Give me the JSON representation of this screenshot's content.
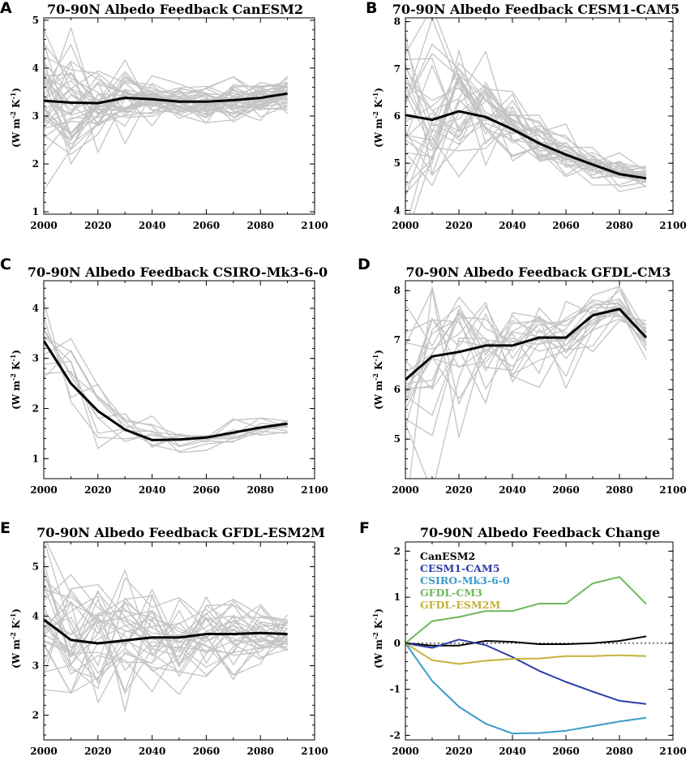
{
  "chart_data": [
    {
      "id": "A",
      "type": "line",
      "title": "70-90N Albedo Feedback CanESM2",
      "ylabel": "(W m⁻² K⁻¹)",
      "xlim": [
        2000,
        2100
      ],
      "ylim": [
        0.95,
        5.05
      ],
      "xticks": [
        2000,
        2020,
        2040,
        2060,
        2080,
        2100
      ],
      "yticks": [
        1,
        2,
        3,
        4,
        5
      ],
      "x": [
        2000,
        2010,
        2020,
        2030,
        2040,
        2050,
        2060,
        2070,
        2080,
        2090
      ],
      "member_seed": 11,
      "member_count": 40,
      "member_spread": [
        0.75,
        0.6,
        0.45,
        0.35,
        0.25,
        0.22,
        0.22,
        0.2,
        0.2,
        0.2
      ],
      "mean": [
        3.32,
        3.28,
        3.27,
        3.38,
        3.35,
        3.3,
        3.3,
        3.33,
        3.38,
        3.47
      ]
    },
    {
      "id": "B",
      "type": "line",
      "title": "70-90N Albedo Feedback CESM1-CAM5",
      "ylabel": "(W m⁻² K⁻¹)",
      "xlim": [
        2000,
        2100
      ],
      "ylim": [
        3.92,
        8.08
      ],
      "xticks": [
        2000,
        2020,
        2040,
        2060,
        2080,
        2100
      ],
      "yticks": [
        4,
        5,
        6,
        7,
        8
      ],
      "x": [
        2000,
        2010,
        2020,
        2030,
        2040,
        2050,
        2060,
        2070,
        2080,
        2090
      ],
      "member_seed": 23,
      "member_count": 30,
      "member_spread": [
        1.0,
        0.95,
        0.75,
        0.55,
        0.35,
        0.3,
        0.25,
        0.18,
        0.15,
        0.12
      ],
      "mean": [
        6.02,
        5.92,
        6.1,
        5.98,
        5.72,
        5.42,
        5.18,
        4.97,
        4.77,
        4.68
      ]
    },
    {
      "id": "C",
      "type": "line",
      "title": "70-90N Albedo Feedback CSIRO-Mk3-6-0",
      "ylabel": "(W m⁻² K⁻¹)",
      "xlim": [
        2000,
        2100
      ],
      "ylim": [
        0.6,
        4.55
      ],
      "xticks": [
        2000,
        2020,
        2040,
        2060,
        2080,
        2100
      ],
      "yticks": [
        1,
        2,
        3,
        4
      ],
      "x": [
        2000,
        2010,
        2020,
        2030,
        2040,
        2050,
        2060,
        2070,
        2080,
        2090
      ],
      "member_seed": 37,
      "member_count": 10,
      "member_spread": [
        0.6,
        0.4,
        0.3,
        0.25,
        0.2,
        0.15,
        0.13,
        0.12,
        0.1,
        0.1
      ],
      "mean": [
        3.35,
        2.5,
        1.95,
        1.58,
        1.37,
        1.38,
        1.42,
        1.52,
        1.62,
        1.7
      ]
    },
    {
      "id": "D",
      "type": "line",
      "title": "70-90N Albedo Feedback GFDL-CM3",
      "ylabel": "(W m⁻² K⁻¹)",
      "xlim": [
        2000,
        2100
      ],
      "ylim": [
        4.2,
        8.2
      ],
      "xticks": [
        2000,
        2020,
        2040,
        2060,
        2080,
        2100
      ],
      "yticks": [
        5,
        6,
        7,
        8
      ],
      "x": [
        2000,
        2010,
        2020,
        2030,
        2040,
        2050,
        2060,
        2070,
        2080,
        2090
      ],
      "member_seed": 53,
      "member_count": 20,
      "member_spread": [
        1.2,
        1.1,
        0.9,
        0.7,
        0.6,
        0.5,
        0.45,
        0.3,
        0.25,
        0.2
      ],
      "mean": [
        6.2,
        6.67,
        6.76,
        6.89,
        6.89,
        7.05,
        7.05,
        7.5,
        7.63,
        7.05
      ]
    },
    {
      "id": "E",
      "type": "line",
      "title": "70-90N Albedo Feedback GFDL-ESM2M",
      "ylabel": "(W m⁻² K⁻¹)",
      "xlim": [
        2000,
        2100
      ],
      "ylim": [
        1.5,
        5.5
      ],
      "xticks": [
        2000,
        2020,
        2040,
        2060,
        2080,
        2100
      ],
      "yticks": [
        2,
        3,
        4,
        5
      ],
      "x": [
        2000,
        2010,
        2020,
        2030,
        2040,
        2050,
        2060,
        2070,
        2080,
        2090
      ],
      "member_seed": 71,
      "member_count": 30,
      "member_spread": [
        1.0,
        0.9,
        0.8,
        0.7,
        0.6,
        0.55,
        0.5,
        0.45,
        0.35,
        0.25
      ],
      "mean": [
        3.93,
        3.52,
        3.45,
        3.51,
        3.57,
        3.57,
        3.64,
        3.64,
        3.66,
        3.64
      ]
    },
    {
      "id": "F",
      "type": "line",
      "title": "70-90N Albedo Feedback Change",
      "ylabel": "(W m⁻² K⁻¹)",
      "xlim": [
        2000,
        2100
      ],
      "ylim": [
        -2.1,
        2.2
      ],
      "xticks": [
        2000,
        2020,
        2040,
        2060,
        2080,
        2100
      ],
      "yticks": [
        -2,
        -1,
        0,
        1,
        2
      ],
      "reference_line": 0,
      "x": [
        2000,
        2010,
        2020,
        2030,
        2040,
        2050,
        2060,
        2070,
        2080,
        2090
      ],
      "series": [
        {
          "name": "CanESM2",
          "color": "#000000",
          "values": [
            0.0,
            -0.05,
            -0.05,
            0.05,
            0.03,
            -0.02,
            -0.02,
            0.0,
            0.05,
            0.15
          ]
        },
        {
          "name": "CESM1-CAM5",
          "color": "#2b3fa8",
          "values": [
            0.0,
            -0.1,
            0.08,
            -0.04,
            -0.3,
            -0.6,
            -0.84,
            -1.05,
            -1.25,
            -1.32
          ]
        },
        {
          "name": "CSIRO-Mk3-6-0",
          "color": "#3a9cc9",
          "values": [
            0.0,
            -0.82,
            -1.38,
            -1.75,
            -1.96,
            -1.95,
            -1.9,
            -1.8,
            -1.7,
            -1.62
          ]
        },
        {
          "name": "GFDL-CM3",
          "color": "#6db85a",
          "values": [
            0.0,
            0.48,
            0.57,
            0.7,
            0.7,
            0.86,
            0.86,
            1.3,
            1.44,
            0.85
          ]
        },
        {
          "name": "GFDL-ESM2M",
          "color": "#c5b23a",
          "values": [
            0.0,
            -0.37,
            -0.45,
            -0.38,
            -0.34,
            -0.33,
            -0.28,
            -0.28,
            -0.26,
            -0.28
          ]
        }
      ]
    }
  ]
}
